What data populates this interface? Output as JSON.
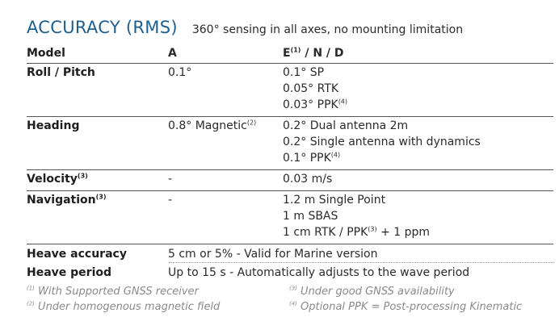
{
  "title": "ACCURACY (RMS)",
  "subtitle": "360° sensing in all axes, no mounting limitation",
  "header": {
    "model": "Model",
    "a": "A",
    "e_pre": "E",
    "e_sup": "(1)",
    "e_post": " / N / D"
  },
  "rows": [
    {
      "label": "Roll / Pitch",
      "label_sup": "",
      "a": [
        {
          "text": "0.1°",
          "sup": ""
        }
      ],
      "e": [
        {
          "text": "0.1° SP",
          "sup": ""
        },
        {
          "text": "0.05° RTK",
          "sup": ""
        },
        {
          "text": "0.03° PPK",
          "sup": "(4)"
        }
      ]
    },
    {
      "label": "Heading",
      "label_sup": "",
      "a": [
        {
          "text": "0.8° Magnetic",
          "sup": "(2)"
        }
      ],
      "e": [
        {
          "text": "0.2° Dual antenna 2m",
          "sup": ""
        },
        {
          "text": "0.2° Single antenna with dynamics",
          "sup": ""
        },
        {
          "text": "0.1° PPK",
          "sup": "(4)"
        }
      ]
    },
    {
      "label": "Velocity",
      "label_sup": "(3)",
      "a": [
        {
          "text": "-",
          "sup": ""
        }
      ],
      "e": [
        {
          "text": "0.03 m/s",
          "sup": ""
        }
      ]
    },
    {
      "label": "Navigation",
      "label_sup": "(3)",
      "a": [
        {
          "text": "-",
          "sup": ""
        }
      ],
      "e": [
        {
          "text": "1.2 m Single Point",
          "sup": ""
        },
        {
          "text": "1 m SBAS",
          "sup": ""
        },
        {
          "text": "1 cm RTK / PPK",
          "sup": "(3)",
          "tail": " + 1 ppm"
        }
      ]
    }
  ],
  "heave_accuracy": {
    "label": "Heave accuracy",
    "value": "5 cm or 5% - Valid for Marine version"
  },
  "heave_period": {
    "label": "Heave period",
    "value": "Up to 15 s - Automatically adjusts to the wave period"
  },
  "footnotes": [
    {
      "num": "(1)",
      "text": " With Supported GNSS receiver"
    },
    {
      "num": "(2)",
      "text": " Under homogenous magnetic field"
    },
    {
      "num": "(3)",
      "text": " Under good GNSS availability"
    },
    {
      "num": "(4)",
      "text": " Optional PPK = Post-processing Kinematic"
    }
  ]
}
